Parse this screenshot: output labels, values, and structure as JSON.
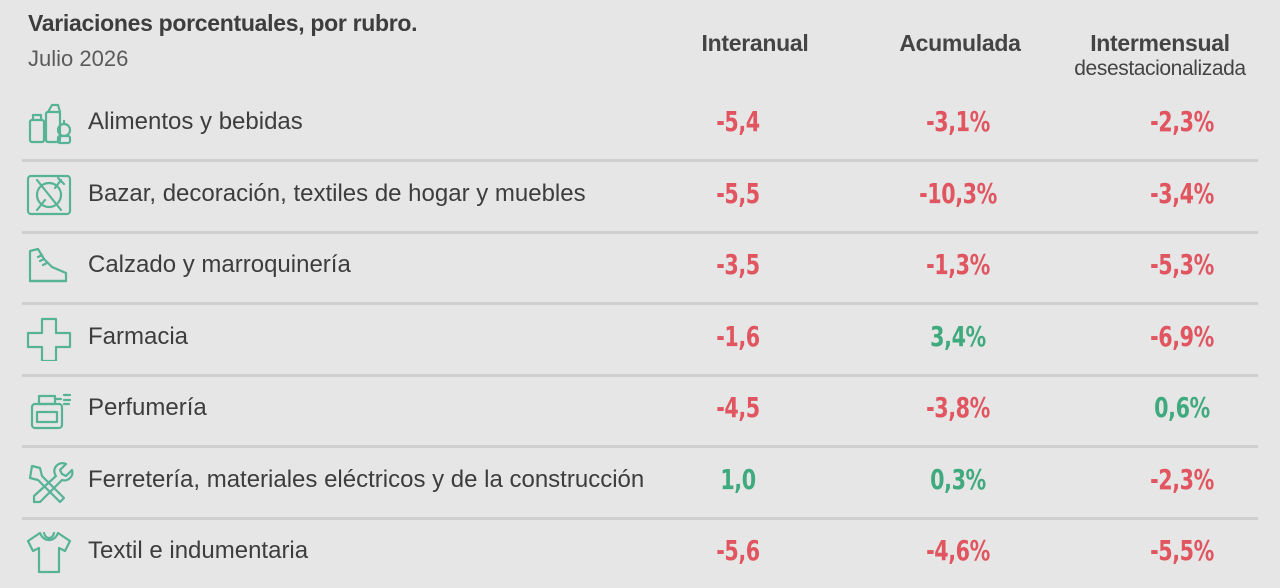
{
  "chart_data": {
    "type": "table",
    "title": "Variaciones porcentuales, por rubro.",
    "subtitle": "Julio 2026",
    "columns": [
      {
        "label": "Interanual",
        "sublabel": ""
      },
      {
        "label": "Acumulada",
        "sublabel": ""
      },
      {
        "label": "Intermensual",
        "sublabel": "desestacionalizada"
      }
    ],
    "rows": [
      {
        "icon": "grocery-icon",
        "label": "Alimentos y bebidas",
        "values": [
          "-5,4",
          "-3,1%",
          "-2,3%"
        ],
        "numeric": [
          -5.4,
          -3.1,
          -2.3
        ]
      },
      {
        "icon": "plate-cutlery-icon",
        "label": "Bazar, decoración, textiles de hogar y muebles",
        "values": [
          "-5,5",
          "-10,3%",
          "-3,4%"
        ],
        "numeric": [
          -5.5,
          -10.3,
          -3.4
        ]
      },
      {
        "icon": "sneaker-icon",
        "label": "Calzado y marroquinería",
        "values": [
          "-3,5",
          "-1,3%",
          "-5,3%"
        ],
        "numeric": [
          -3.5,
          -1.3,
          -5.3
        ]
      },
      {
        "icon": "pharmacy-cross-icon",
        "label": "Farmacia",
        "values": [
          "-1,6",
          "3,4%",
          "-6,9%"
        ],
        "numeric": [
          -1.6,
          3.4,
          -6.9
        ]
      },
      {
        "icon": "perfume-bottle-icon",
        "label": "Perfumería",
        "values": [
          "-4,5",
          "-3,8%",
          "0,6%"
        ],
        "numeric": [
          -4.5,
          -3.8,
          0.6
        ]
      },
      {
        "icon": "tools-icon",
        "label": "Ferretería, materiales eléctricos y de la construcción",
        "values": [
          "1,0",
          "0,3%",
          "-2,3%"
        ],
        "numeric": [
          1.0,
          0.3,
          -2.3
        ]
      },
      {
        "icon": "tshirt-icon",
        "label": "Textil e indumentaria",
        "values": [
          "-5,6",
          "-4,6%",
          "-5,5%"
        ],
        "numeric": [
          -5.6,
          -4.6,
          -5.5
        ]
      }
    ],
    "colors": {
      "negative": "#e05560",
      "positive": "#3faa7e",
      "icon": "#56b395",
      "background": "#e6e6e6"
    }
  }
}
